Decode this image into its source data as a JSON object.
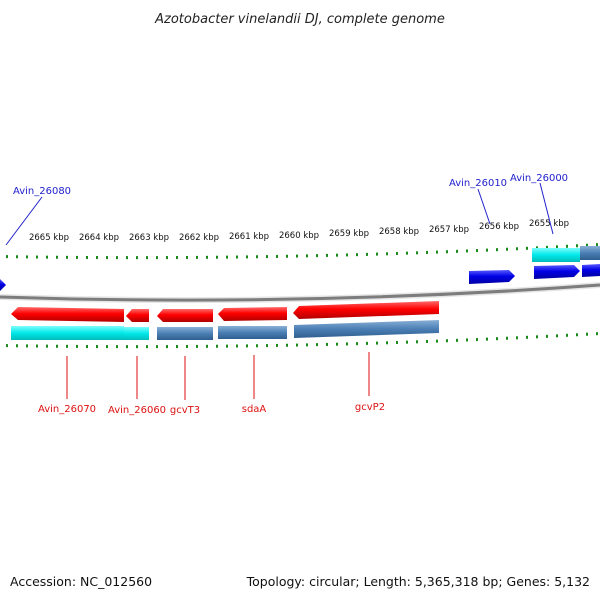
{
  "title": "Azotobacter vinelandii DJ, complete genome",
  "footer": {
    "accession": "Accession: NC_012560",
    "summary": "Topology: circular; Length: 5,365,318 bp; Genes: 5,132"
  },
  "scale": {
    "tick_labels": [
      "2665 kbp",
      "2664 kbp",
      "2663 kbp",
      "2662 kbp",
      "2661 kbp",
      "2660 kbp",
      "2659 kbp",
      "2658 kbp",
      "2657 kbp",
      "2656 kbp",
      "2655 kbp"
    ]
  },
  "genes_top": [
    "Avin_26080",
    "Avin_26010",
    "Avin_26000"
  ],
  "genes_bottom": [
    "Avin_26070",
    "Avin_26060",
    "gcvT3",
    "sdaA",
    "gcvP2"
  ],
  "colors": {
    "forward_cds": "#0a0ae0",
    "reverse_cds": "#e60000",
    "gene_light": "#00e8e8",
    "gene_dark": "#4a7fb5",
    "ticks": "#1a8a1a",
    "backbone": "#808080",
    "top_label": "#2222cc",
    "bottom_label": "#dd1111"
  }
}
